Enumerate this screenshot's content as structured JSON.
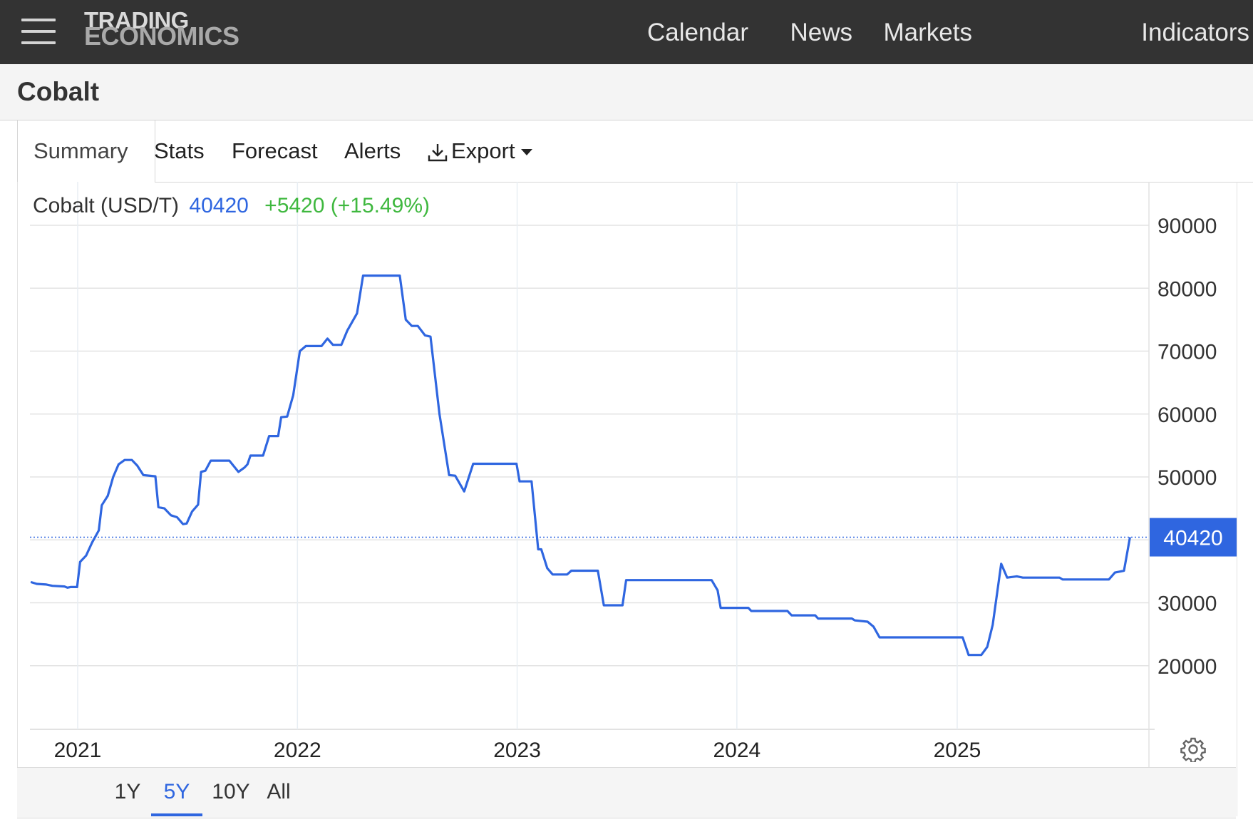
{
  "brand": {
    "line1": "TRADING",
    "line2": "ECONOMICS"
  },
  "nav": [
    "Calendar",
    "News",
    "Markets",
    "Indicators"
  ],
  "page_title": "Cobalt",
  "tabs": [
    "Summary",
    "Stats",
    "Forecast",
    "Alerts",
    "Export"
  ],
  "active_tab": "Summary",
  "quote": {
    "name": "Cobalt (USD/T)",
    "value": "40420",
    "change": "+5420 (+15.49%)"
  },
  "ranges": [
    "1Y",
    "5Y",
    "10Y",
    "All"
  ],
  "active_range": "5Y",
  "icons": {
    "menu": "hamburger-icon",
    "export": "download-icon",
    "settings": "gear-icon"
  },
  "colors": {
    "line": "#2f66e0",
    "positive": "#3fb83f",
    "topbar": "#333333"
  },
  "chart_data": {
    "type": "line",
    "title": "Cobalt (USD/T)",
    "x_ticks": [
      "2021",
      "2022",
      "2023",
      "2024",
      "2025"
    ],
    "y_ticks": [
      20000,
      30000,
      40000,
      50000,
      60000,
      70000,
      80000,
      90000
    ],
    "ylim": [
      10000,
      90000
    ],
    "xlim": [
      "2020-10-15",
      "2025-12-31"
    ],
    "last_value_label": "40420",
    "grid": true,
    "series": [
      {
        "points": [
          [
            "2020-10-15",
            33300
          ],
          [
            "2020-10-25",
            33000
          ],
          [
            "2020-11-10",
            32900
          ],
          [
            "2020-11-20",
            32700
          ],
          [
            "2020-12-10",
            32600
          ],
          [
            "2020-12-15",
            32400
          ],
          [
            "2020-12-20",
            32500
          ],
          [
            "2020-12-31",
            32500
          ],
          [
            "2021-01-05",
            36500
          ],
          [
            "2021-01-15",
            37500
          ],
          [
            "2021-01-25",
            39600
          ],
          [
            "2021-02-05",
            41500
          ],
          [
            "2021-02-10",
            45500
          ],
          [
            "2021-02-20",
            47000
          ],
          [
            "2021-03-01",
            50000
          ],
          [
            "2021-03-10",
            52000
          ],
          [
            "2021-03-20",
            52700
          ],
          [
            "2021-04-01",
            52700
          ],
          [
            "2021-04-10",
            51800
          ],
          [
            "2021-04-20",
            50300
          ],
          [
            "2021-05-10",
            50100
          ],
          [
            "2021-05-15",
            45200
          ],
          [
            "2021-05-25",
            45000
          ],
          [
            "2021-06-05",
            43900
          ],
          [
            "2021-06-15",
            43600
          ],
          [
            "2021-06-25",
            42500
          ],
          [
            "2021-07-01",
            42600
          ],
          [
            "2021-07-10",
            44500
          ],
          [
            "2021-07-20",
            45600
          ],
          [
            "2021-07-25",
            50800
          ],
          [
            "2021-08-01",
            51000
          ],
          [
            "2021-08-10",
            52600
          ],
          [
            "2021-09-10",
            52600
          ],
          [
            "2021-09-25",
            50800
          ],
          [
            "2021-10-05",
            51500
          ],
          [
            "2021-10-10",
            52000
          ],
          [
            "2021-10-15",
            53400
          ],
          [
            "2021-11-05",
            53400
          ],
          [
            "2021-11-15",
            56500
          ],
          [
            "2021-11-30",
            56500
          ],
          [
            "2021-12-05",
            59500
          ],
          [
            "2021-12-15",
            59600
          ],
          [
            "2021-12-25",
            63000
          ],
          [
            "2022-01-05",
            70000
          ],
          [
            "2022-01-15",
            70800
          ],
          [
            "2022-02-10",
            70800
          ],
          [
            "2022-02-20",
            72000
          ],
          [
            "2022-03-01",
            71000
          ],
          [
            "2022-03-15",
            71000
          ],
          [
            "2022-03-25",
            73300
          ],
          [
            "2022-04-10",
            76000
          ],
          [
            "2022-04-20",
            82000
          ],
          [
            "2022-06-20",
            82000
          ],
          [
            "2022-06-30",
            75000
          ],
          [
            "2022-07-10",
            74000
          ],
          [
            "2022-07-20",
            74000
          ],
          [
            "2022-08-01",
            72500
          ],
          [
            "2022-08-10",
            72300
          ],
          [
            "2022-08-25",
            60000
          ],
          [
            "2022-09-10",
            50300
          ],
          [
            "2022-09-20",
            50200
          ],
          [
            "2022-10-05",
            47700
          ],
          [
            "2022-10-20",
            52100
          ],
          [
            "2022-12-31",
            52100
          ],
          [
            "2023-01-05",
            49300
          ],
          [
            "2023-01-25",
            49300
          ],
          [
            "2023-02-05",
            38500
          ],
          [
            "2023-02-10",
            38500
          ],
          [
            "2023-02-20",
            35500
          ],
          [
            "2023-03-01",
            34500
          ],
          [
            "2023-03-25",
            34500
          ],
          [
            "2023-04-01",
            35100
          ],
          [
            "2023-05-15",
            35100
          ],
          [
            "2023-05-25",
            29600
          ],
          [
            "2023-06-25",
            29600
          ],
          [
            "2023-07-01",
            33600
          ],
          [
            "2023-11-20",
            33600
          ],
          [
            "2023-11-30",
            32000
          ],
          [
            "2023-12-05",
            29200
          ],
          [
            "2024-01-20",
            29200
          ],
          [
            "2024-01-25",
            28700
          ],
          [
            "2024-03-25",
            28700
          ],
          [
            "2024-04-01",
            28000
          ],
          [
            "2024-05-10",
            28000
          ],
          [
            "2024-05-15",
            27500
          ],
          [
            "2024-07-10",
            27500
          ],
          [
            "2024-07-15",
            27200
          ],
          [
            "2024-08-05",
            27000
          ],
          [
            "2024-08-15",
            26200
          ],
          [
            "2024-08-25",
            24500
          ],
          [
            "2025-01-10",
            24500
          ],
          [
            "2025-01-20",
            21700
          ],
          [
            "2025-02-10",
            21700
          ],
          [
            "2025-02-20",
            23000
          ],
          [
            "2025-03-01",
            26500
          ],
          [
            "2025-03-15",
            36200
          ],
          [
            "2025-03-25",
            34000
          ],
          [
            "2025-04-10",
            34200
          ],
          [
            "2025-04-20",
            34000
          ],
          [
            "2025-06-20",
            34000
          ],
          [
            "2025-06-25",
            33700
          ],
          [
            "2025-09-10",
            33700
          ],
          [
            "2025-09-20",
            34800
          ],
          [
            "2025-09-30",
            35000
          ],
          [
            "2025-10-05",
            35100
          ],
          [
            "2025-10-15",
            40420
          ]
        ]
      }
    ]
  }
}
